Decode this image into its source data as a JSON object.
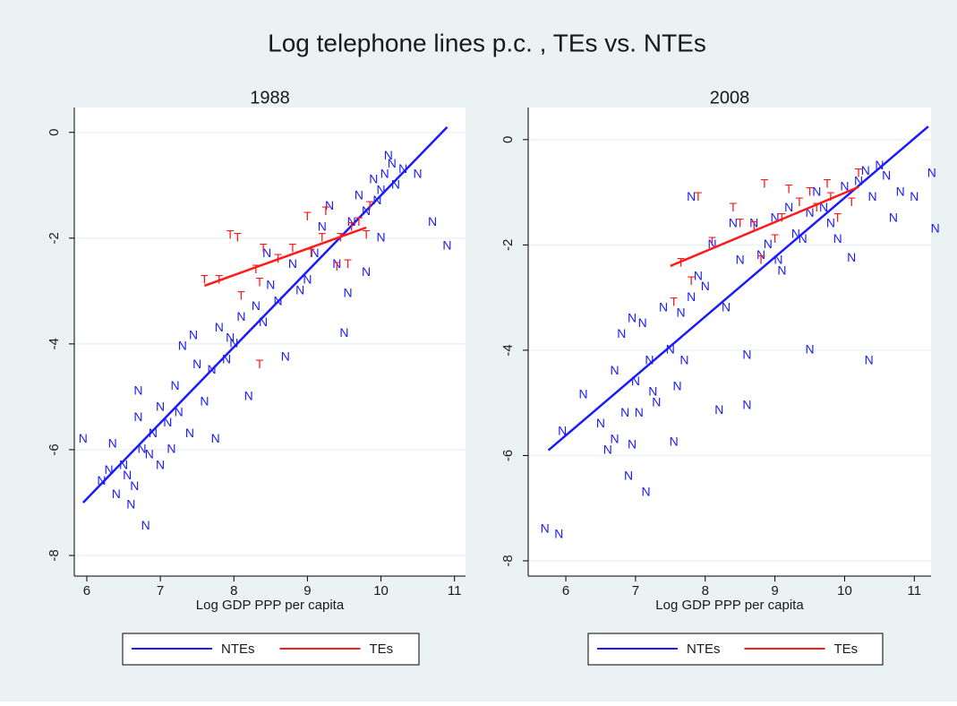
{
  "title": "Log telephone lines p.c. , TEs vs. NTEs",
  "chart_data": [
    {
      "type": "scatter",
      "title": "1988",
      "x_label": "Log GDP PPP per capita",
      "xlim": [
        5.83,
        11.15
      ],
      "ylim": [
        -8.39,
        0.47
      ],
      "xticks": [
        6,
        7,
        8,
        9,
        10,
        11
      ],
      "yticks": [
        0,
        -2,
        -4,
        -6,
        -8
      ],
      "grid": true,
      "series": [
        {
          "name": "NTEs",
          "marker": "N",
          "color": "#1a1aff",
          "x": [
            5.95,
            6.2,
            6.3,
            6.35,
            6.4,
            6.5,
            6.55,
            6.6,
            6.65,
            6.7,
            6.7,
            6.75,
            6.8,
            6.85,
            6.9,
            7.0,
            7.0,
            7.1,
            7.15,
            7.2,
            7.25,
            7.3,
            7.4,
            7.45,
            7.5,
            7.6,
            7.7,
            7.75,
            7.8,
            7.9,
            8.0,
            8.1,
            8.2,
            8.3,
            8.4,
            8.5,
            8.6,
            8.7,
            8.8,
            8.9,
            9.0,
            9.1,
            9.2,
            9.3,
            9.4,
            9.5,
            9.55,
            9.6,
            9.7,
            9.8,
            9.8,
            9.9,
            10.0,
            10.0,
            10.05,
            10.1,
            10.2,
            10.3,
            10.5,
            10.7,
            10.9,
            10.15,
            9.95,
            8.45,
            7.95
          ],
          "values": [
            -5.8,
            -6.6,
            -6.4,
            -5.9,
            -6.85,
            -6.3,
            -6.5,
            -7.05,
            -6.7,
            -4.9,
            -5.4,
            -6.0,
            -7.45,
            -6.1,
            -5.7,
            -5.2,
            -6.3,
            -5.5,
            -6.0,
            -4.8,
            -5.3,
            -4.05,
            -5.7,
            -3.85,
            -4.4,
            -5.1,
            -4.5,
            -5.8,
            -3.7,
            -4.3,
            -4.0,
            -3.5,
            -5.0,
            -3.3,
            -3.6,
            -2.9,
            -3.2,
            -4.25,
            -2.5,
            -3.0,
            -2.8,
            -2.3,
            -1.8,
            -1.4,
            -2.5,
            -3.8,
            -3.05,
            -1.7,
            -1.2,
            -1.5,
            -2.65,
            -0.9,
            -1.1,
            -2.0,
            -0.8,
            -0.45,
            -1.0,
            -0.7,
            -0.8,
            -1.7,
            -2.15,
            -0.6,
            -1.3,
            -2.3,
            -3.9
          ],
          "fit": {
            "x": [
              5.95,
              10.9
            ],
            "values": [
              -7.0,
              0.1
            ]
          }
        },
        {
          "name": "TEs",
          "marker": "T",
          "color": "#ff1a1a",
          "x": [
            7.6,
            7.8,
            7.95,
            8.05,
            8.1,
            8.3,
            8.35,
            8.4,
            8.35,
            8.6,
            8.8,
            9.0,
            9.05,
            9.2,
            9.25,
            9.4,
            9.45,
            9.55,
            9.6,
            9.7,
            9.8,
            9.85
          ],
          "values": [
            -2.8,
            -2.8,
            -1.95,
            -2.0,
            -3.1,
            -2.6,
            -4.4,
            -2.2,
            -2.85,
            -2.4,
            -2.2,
            -1.6,
            -2.3,
            -2.0,
            -1.5,
            -2.55,
            -2.0,
            -2.5,
            -1.8,
            -1.7,
            -1.95,
            -1.4
          ],
          "fit": {
            "x": [
              7.6,
              9.8
            ],
            "values": [
              -2.9,
              -1.8
            ]
          }
        }
      ]
    },
    {
      "type": "scatter",
      "title": "2008",
      "x_label": "Log GDP PPP per capita",
      "xlim": [
        5.46,
        11.24
      ],
      "ylim": [
        -8.29,
        0.61
      ],
      "xticks": [
        6,
        7,
        8,
        9,
        10,
        11
      ],
      "yticks": [
        0,
        -2,
        -4,
        -6,
        -8
      ],
      "grid": true,
      "series": [
        {
          "name": "NTEs",
          "marker": "N",
          "color": "#1a1aff",
          "x": [
            5.7,
            5.9,
            5.95,
            6.25,
            6.5,
            6.6,
            6.7,
            6.7,
            6.8,
            6.85,
            6.9,
            6.95,
            6.95,
            7.0,
            7.05,
            7.1,
            7.15,
            7.2,
            7.25,
            7.3,
            7.4,
            7.5,
            7.55,
            7.6,
            7.65,
            7.7,
            7.8,
            7.8,
            7.9,
            8.0,
            8.1,
            8.2,
            8.3,
            8.4,
            8.5,
            8.6,
            8.6,
            8.7,
            8.8,
            8.9,
            9.0,
            9.1,
            9.2,
            9.3,
            9.4,
            9.5,
            9.5,
            9.6,
            9.7,
            9.8,
            9.9,
            10.0,
            10.1,
            10.2,
            10.3,
            10.35,
            10.4,
            10.5,
            10.6,
            10.7,
            10.8,
            11.0,
            11.25,
            11.3,
            9.05
          ],
          "values": [
            -7.4,
            -7.5,
            -5.55,
            -4.85,
            -5.4,
            -5.9,
            -4.4,
            -5.7,
            -3.7,
            -5.2,
            -6.4,
            -3.4,
            -5.8,
            -4.6,
            -5.2,
            -3.5,
            -6.7,
            -4.2,
            -4.8,
            -5.0,
            -3.2,
            -4.0,
            -5.75,
            -4.7,
            -3.3,
            -4.2,
            -1.1,
            -3.0,
            -2.6,
            -2.8,
            -2.0,
            -5.15,
            -3.2,
            -1.6,
            -2.3,
            -5.05,
            -4.1,
            -1.6,
            -2.2,
            -2.0,
            -1.5,
            -2.5,
            -1.3,
            -1.8,
            -1.9,
            -1.4,
            -4.0,
            -1.0,
            -1.3,
            -1.6,
            -1.9,
            -0.9,
            -2.25,
            -0.8,
            -0.6,
            -4.2,
            -1.1,
            -0.5,
            -0.7,
            -1.5,
            -1.0,
            -1.1,
            -0.65,
            -1.7,
            -2.3
          ],
          "fit": {
            "x": [
              5.75,
              11.2
            ],
            "values": [
              -5.9,
              0.25
            ]
          }
        },
        {
          "name": "TEs",
          "marker": "T",
          "color": "#ff1a1a",
          "x": [
            7.55,
            7.65,
            7.8,
            7.9,
            8.1,
            8.4,
            8.5,
            8.7,
            8.8,
            8.85,
            9.0,
            9.1,
            9.2,
            9.35,
            9.5,
            9.6,
            9.75,
            9.8,
            9.9,
            10.1,
            10.2
          ],
          "values": [
            -3.1,
            -2.35,
            -2.7,
            -1.1,
            -1.95,
            -1.3,
            -1.6,
            -1.65,
            -2.3,
            -0.85,
            -1.9,
            -1.5,
            -0.95,
            -1.2,
            -1.0,
            -1.3,
            -0.85,
            -1.1,
            -1.5,
            -1.2,
            -0.65
          ],
          "fit": {
            "x": [
              7.5,
              10.2
            ],
            "values": [
              -2.4,
              -0.9
            ]
          }
        }
      ]
    }
  ]
}
